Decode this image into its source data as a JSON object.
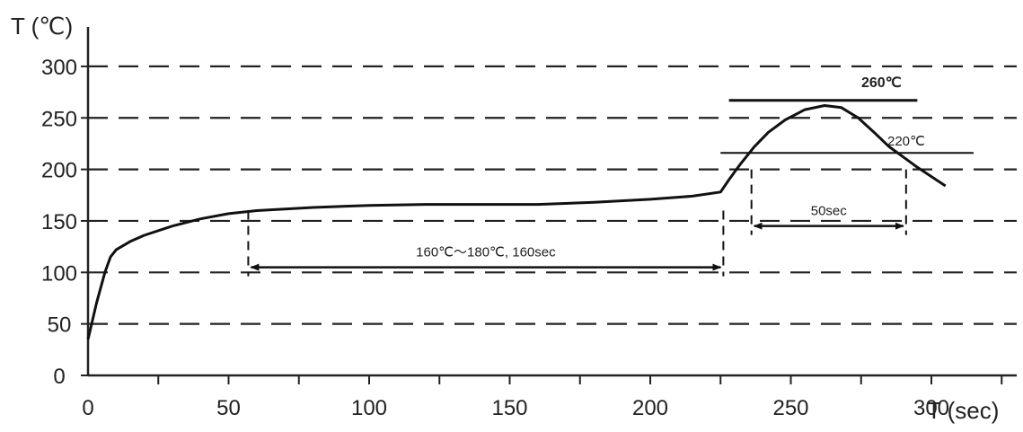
{
  "chart_data": {
    "type": "line",
    "xlabel": "T (sec)",
    "ylabel": "T (℃)",
    "x_ticks": [
      0,
      50,
      100,
      150,
      200,
      250,
      300
    ],
    "y_ticks": [
      0,
      50,
      100,
      150,
      200,
      250,
      300
    ],
    "xlim": [
      0,
      350
    ],
    "ylim": [
      0,
      340
    ],
    "grid": "horizontal dashed",
    "series": [
      {
        "x": [
          0,
          3,
          6,
          8,
          10,
          15,
          20,
          30,
          40,
          50,
          60,
          80,
          100,
          120,
          140,
          160,
          180,
          200,
          215,
          225,
          228,
          232,
          237,
          242,
          248,
          255,
          262,
          268,
          274,
          280,
          285,
          290,
          295,
          300,
          305
        ],
        "y": [
          35,
          70,
          100,
          115,
          122,
          130,
          136,
          145,
          152,
          157,
          160,
          163,
          165,
          166,
          166,
          166,
          168,
          171,
          174,
          178,
          190,
          205,
          222,
          236,
          248,
          258,
          262,
          260,
          250,
          235,
          222,
          212,
          202,
          193,
          184
        ]
      }
    ],
    "reference_lines": [
      {
        "label": "260℃",
        "y": 267,
        "x_start": 228,
        "x_end": 295
      },
      {
        "label": "220℃",
        "y": 216,
        "x_start": 225,
        "x_end": 315
      }
    ],
    "intervals": [
      {
        "label": "160℃～180℃, 160sec",
        "x_start": 57,
        "x_end": 226,
        "y": 105,
        "marker_top": 160
      },
      {
        "label": "50sec",
        "x_start": 236,
        "x_end": 291,
        "y": 145,
        "marker_top": 200
      }
    ]
  }
}
